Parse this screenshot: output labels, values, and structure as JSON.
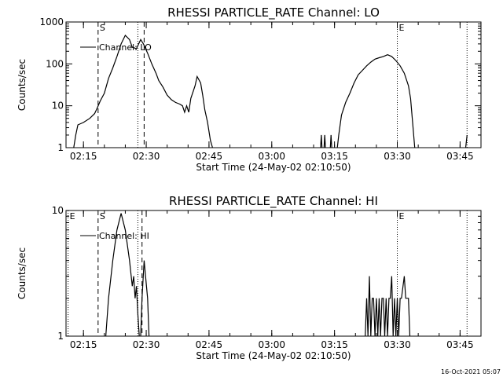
{
  "chart_data": [
    {
      "type": "line",
      "title": "RHESSI PARTICLE_RATE Channel: LO",
      "xlabel": "Start Time (24-May-02 02:10:50)",
      "ylabel": "Counts/sec",
      "yscale": "log",
      "ylim": [
        1,
        1000
      ],
      "xlim": [
        "02:10:50",
        "03:50:00"
      ],
      "x_ticks": [
        "02:15",
        "02:30",
        "02:45",
        "03:00",
        "03:15",
        "03:30",
        "03:45"
      ],
      "y_ticks": [
        "1",
        "10",
        "100",
        "1000"
      ],
      "legend": "Channel: LO",
      "legend_placement": "top-left",
      "grid": false,
      "markers": [
        {
          "label": "S",
          "time": "02:18:30",
          "style": "dashed"
        },
        {
          "label": "",
          "time": "02:29:30",
          "style": "dashed"
        },
        {
          "label": "",
          "time": "02:28:00",
          "style": "dotted"
        },
        {
          "label": "E",
          "time": "03:30:00",
          "style": "dotted"
        },
        {
          "label": "",
          "time": "03:46:40",
          "style": "dotted"
        }
      ],
      "series": [
        {
          "name": "Channel: LO",
          "segments": [
            [
              [
                "02:12:40",
                1
              ],
              [
                "02:13:10",
                2
              ],
              [
                "02:13:40",
                3.5
              ],
              [
                "02:15:00",
                4
              ],
              [
                "02:16:30",
                5
              ],
              [
                "02:17:40",
                6.5
              ],
              [
                "02:18:20",
                9
              ],
              [
                "02:19:00",
                13
              ],
              [
                "02:20:00",
                20
              ],
              [
                "02:21:00",
                45
              ],
              [
                "02:22:00",
                80
              ],
              [
                "02:23:00",
                150
              ],
              [
                "02:24:00",
                300
              ],
              [
                "02:25:00",
                480
              ],
              [
                "02:26:00",
                380
              ],
              [
                "02:26:40",
                250
              ],
              [
                "02:27:40",
                230
              ],
              [
                "02:28:40",
                380
              ],
              [
                "02:29:20",
                300
              ],
              [
                "02:30:20",
                180
              ],
              [
                "02:31:20",
                100
              ],
              [
                "02:32:20",
                60
              ],
              [
                "02:33:00",
                40
              ],
              [
                "02:34:00",
                28
              ],
              [
                "02:35:00",
                18
              ],
              [
                "02:36:00",
                14
              ],
              [
                "02:37:00",
                12
              ],
              [
                "02:38:00",
                11
              ],
              [
                "02:38:40",
                10
              ],
              [
                "02:39:10",
                7
              ],
              [
                "02:39:40",
                10
              ],
              [
                "02:40:10",
                7
              ],
              [
                "02:40:40",
                15
              ],
              [
                "02:41:40",
                30
              ],
              [
                "02:42:10",
                50
              ],
              [
                "02:43:00",
                35
              ],
              [
                "02:43:30",
                18
              ],
              [
                "02:44:00",
                8
              ],
              [
                "02:44:40",
                4
              ],
              [
                "02:45:20",
                1.5
              ],
              [
                "02:45:50",
                1
              ]
            ],
            [
              [
                "03:11:40",
                1
              ],
              [
                "03:11:50",
                2
              ],
              [
                "03:12:00",
                1
              ]
            ],
            [
              [
                "03:12:30",
                1
              ],
              [
                "03:12:40",
                2
              ],
              [
                "03:12:50",
                1
              ]
            ],
            [
              [
                "03:14:00",
                1
              ],
              [
                "03:14:10",
                2
              ],
              [
                "03:14:20",
                1
              ]
            ],
            [
              [
                "03:15:40",
                1
              ],
              [
                "03:16:00",
                2
              ],
              [
                "03:16:40",
                6
              ],
              [
                "03:17:40",
                12
              ],
              [
                "03:18:40",
                20
              ],
              [
                "03:19:40",
                35
              ],
              [
                "03:20:40",
                55
              ],
              [
                "03:21:40",
                70
              ],
              [
                "03:22:40",
                90
              ],
              [
                "03:23:40",
                110
              ],
              [
                "03:24:40",
                130
              ],
              [
                "03:25:40",
                140
              ],
              [
                "03:26:40",
                150
              ],
              [
                "03:27:40",
                165
              ],
              [
                "03:28:40",
                150
              ],
              [
                "03:29:40",
                120
              ],
              [
                "03:30:40",
                90
              ],
              [
                "03:31:40",
                60
              ],
              [
                "03:32:40",
                30
              ],
              [
                "03:33:10",
                15
              ],
              [
                "03:33:40",
                4
              ],
              [
                "03:34:10",
                1
              ]
            ],
            [
              [
                "03:46:20",
                1
              ],
              [
                "03:46:40",
                2
              ]
            ]
          ]
        }
      ]
    },
    {
      "type": "line",
      "title": "RHESSI PARTICLE_RATE Channel: HI",
      "xlabel": "Start Time (24-May-02 02:10:50)",
      "ylabel": "Counts/sec",
      "yscale": "log",
      "ylim": [
        1,
        10
      ],
      "xlim": [
        "02:10:50",
        "03:50:00"
      ],
      "x_ticks": [
        "02:15",
        "02:30",
        "02:45",
        "03:00",
        "03:15",
        "03:30",
        "03:45"
      ],
      "y_ticks": [
        "1",
        "10"
      ],
      "legend": "Channel: HI",
      "legend_placement": "top-left",
      "grid": false,
      "markers": [
        {
          "label": "E",
          "time": "02:11:20",
          "style": "dotted"
        },
        {
          "label": "S",
          "time": "02:18:30",
          "style": "dashed"
        },
        {
          "label": "",
          "time": "02:29:00",
          "style": "dashed"
        },
        {
          "label": "",
          "time": "02:28:00",
          "style": "dotted"
        },
        {
          "label": "E",
          "time": "03:30:00",
          "style": "dotted"
        },
        {
          "label": "",
          "time": "03:46:40",
          "style": "dotted"
        }
      ],
      "series": [
        {
          "name": "Channel: HI",
          "segments": [
            [
              [
                "02:20:20",
                1
              ],
              [
                "02:21:00",
                2
              ],
              [
                "02:22:00",
                4
              ],
              [
                "02:23:00",
                7
              ],
              [
                "02:24:00",
                9.5
              ],
              [
                "02:25:00",
                7
              ],
              [
                "02:26:00",
                4
              ],
              [
                "02:26:40",
                2.5
              ],
              [
                "02:27:00",
                3
              ],
              [
                "02:27:20",
                2
              ],
              [
                "02:27:40",
                2.5
              ],
              [
                "02:28:00",
                1.5
              ],
              [
                "02:28:20",
                1
              ]
            ],
            [
              [
                "02:28:40",
                1
              ],
              [
                "02:29:00",
                2
              ],
              [
                "02:29:30",
                4
              ],
              [
                "02:29:50",
                3
              ],
              [
                "02:30:20",
                2
              ],
              [
                "02:30:40",
                1
              ]
            ],
            [
              [
                "03:22:20",
                1
              ],
              [
                "03:22:40",
                2
              ],
              [
                "03:23:00",
                1
              ],
              [
                "03:23:20",
                3
              ],
              [
                "03:23:40",
                1
              ],
              [
                "03:24:00",
                2
              ],
              [
                "03:24:20",
                2
              ],
              [
                "03:24:40",
                1
              ],
              [
                "03:25:00",
                2
              ],
              [
                "03:25:20",
                1
              ],
              [
                "03:25:40",
                2
              ],
              [
                "03:26:00",
                1
              ],
              [
                "03:26:20",
                2
              ],
              [
                "03:26:40",
                2
              ],
              [
                "03:27:00",
                1
              ],
              [
                "03:27:20",
                2
              ],
              [
                "03:27:40",
                1
              ],
              [
                "03:28:00",
                2
              ],
              [
                "03:28:20",
                2
              ],
              [
                "03:28:40",
                3
              ],
              [
                "03:29:00",
                1
              ],
              [
                "03:29:20",
                2
              ],
              [
                "03:29:40",
                1
              ],
              [
                "03:30:00",
                2
              ],
              [
                "03:30:20",
                1
              ],
              [
                "03:30:40",
                2
              ],
              [
                "03:31:00",
                2
              ],
              [
                "03:31:40",
                3
              ],
              [
                "03:32:00",
                2
              ],
              [
                "03:32:40",
                2
              ],
              [
                "03:33:00",
                1
              ]
            ]
          ]
        }
      ]
    }
  ],
  "footer": {
    "timestamp": "16-Oct-2021 05:07"
  }
}
